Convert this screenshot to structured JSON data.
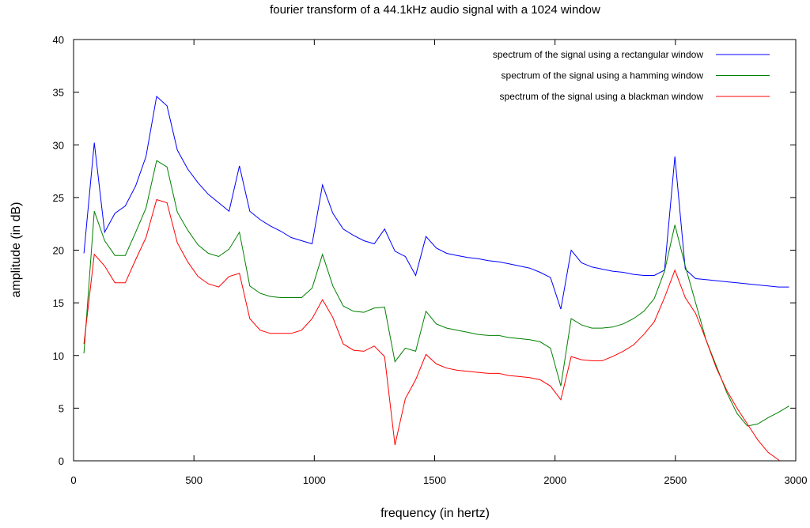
{
  "chart_data": {
    "type": "line",
    "title": "fourier transform of a 44.1kHz audio signal with a 1024 window",
    "xlabel": "frequency (in hertz)",
    "ylabel": "amplitude (in dB)",
    "xlim": [
      0,
      3000
    ],
    "ylim": [
      0,
      40
    ],
    "xticks": [
      0,
      500,
      1000,
      1500,
      2000,
      2500,
      3000
    ],
    "yticks": [
      0,
      5,
      10,
      15,
      20,
      25,
      30,
      35,
      40
    ],
    "grid": false,
    "legend_position": "top-right",
    "x": [
      43,
      86,
      129,
      172,
      215,
      258,
      301,
      345,
      388,
      431,
      474,
      517,
      560,
      603,
      646,
      689,
      732,
      775,
      818,
      861,
      904,
      947,
      991,
      1034,
      1077,
      1120,
      1163,
      1206,
      1249,
      1292,
      1335,
      1378,
      1421,
      1464,
      1507,
      1550,
      1593,
      1637,
      1680,
      1723,
      1766,
      1809,
      1852,
      1895,
      1938,
      1981,
      2024,
      2067,
      2110,
      2153,
      2196,
      2239,
      2283,
      2326,
      2369,
      2412,
      2455,
      2498,
      2541,
      2584,
      2627,
      2670,
      2713,
      2756,
      2799,
      2842,
      2885,
      2928,
      2972
    ],
    "series": [
      {
        "name": "spectrum of the signal using a rectangular window",
        "color": "#0000ff",
        "values": [
          19.7,
          30.2,
          21.7,
          23.5,
          24.2,
          26.1,
          28.9,
          34.6,
          33.7,
          29.5,
          27.7,
          26.4,
          25.3,
          24.5,
          23.7,
          28.0,
          23.7,
          22.9,
          22.3,
          21.8,
          21.2,
          20.9,
          20.6,
          26.2,
          23.5,
          22.0,
          21.4,
          20.9,
          20.6,
          22.0,
          19.9,
          19.4,
          17.6,
          21.3,
          20.2,
          19.7,
          19.5,
          19.3,
          19.2,
          19.0,
          18.9,
          18.7,
          18.5,
          18.3,
          17.9,
          17.4,
          14.4,
          20.0,
          18.8,
          18.4,
          18.2,
          18.0,
          17.9,
          17.7,
          17.6,
          17.6,
          18.1,
          28.9,
          18.2,
          17.3,
          17.2,
          17.1,
          17.0,
          16.9,
          16.8,
          16.7,
          16.6,
          16.5,
          16.5
        ]
      },
      {
        "name": "spectrum of the signal using a hamming window",
        "color": "#008000",
        "values": [
          10.2,
          23.7,
          20.9,
          19.5,
          19.5,
          21.7,
          24.0,
          28.5,
          27.9,
          23.6,
          21.9,
          20.5,
          19.7,
          19.4,
          20.1,
          21.7,
          16.6,
          15.9,
          15.6,
          15.5,
          15.5,
          15.5,
          16.4,
          19.6,
          16.6,
          14.7,
          14.2,
          14.1,
          14.5,
          14.6,
          9.4,
          10.7,
          10.4,
          14.2,
          13.0,
          12.6,
          12.4,
          12.2,
          12.0,
          11.9,
          11.9,
          11.7,
          11.6,
          11.5,
          11.3,
          10.7,
          7.1,
          13.5,
          12.9,
          12.6,
          12.6,
          12.7,
          13.0,
          13.5,
          14.2,
          15.4,
          18.0,
          22.4,
          18.5,
          15.0,
          11.5,
          9.0,
          6.5,
          4.5,
          3.3,
          3.5,
          4.1,
          4.6,
          5.2
        ]
      },
      {
        "name": "spectrum of the signal using a blackman window",
        "color": "#ff0000",
        "values": [
          11.1,
          19.6,
          18.5,
          16.9,
          16.9,
          19.1,
          21.2,
          24.8,
          24.5,
          20.7,
          18.9,
          17.5,
          16.8,
          16.5,
          17.5,
          17.8,
          13.5,
          12.4,
          12.1,
          12.1,
          12.1,
          12.4,
          13.5,
          15.3,
          13.6,
          11.1,
          10.5,
          10.4,
          10.9,
          9.9,
          1.5,
          5.9,
          7.7,
          10.1,
          9.2,
          8.8,
          8.6,
          8.5,
          8.4,
          8.3,
          8.3,
          8.1,
          8.0,
          7.9,
          7.7,
          7.1,
          5.8,
          9.9,
          9.6,
          9.5,
          9.5,
          9.9,
          10.4,
          11.0,
          12.0,
          13.2,
          15.5,
          18.1,
          15.5,
          14.0,
          11.5,
          8.8,
          6.7,
          5.0,
          3.5,
          2.0,
          0.8,
          0.1,
          -1.0
        ]
      }
    ]
  }
}
